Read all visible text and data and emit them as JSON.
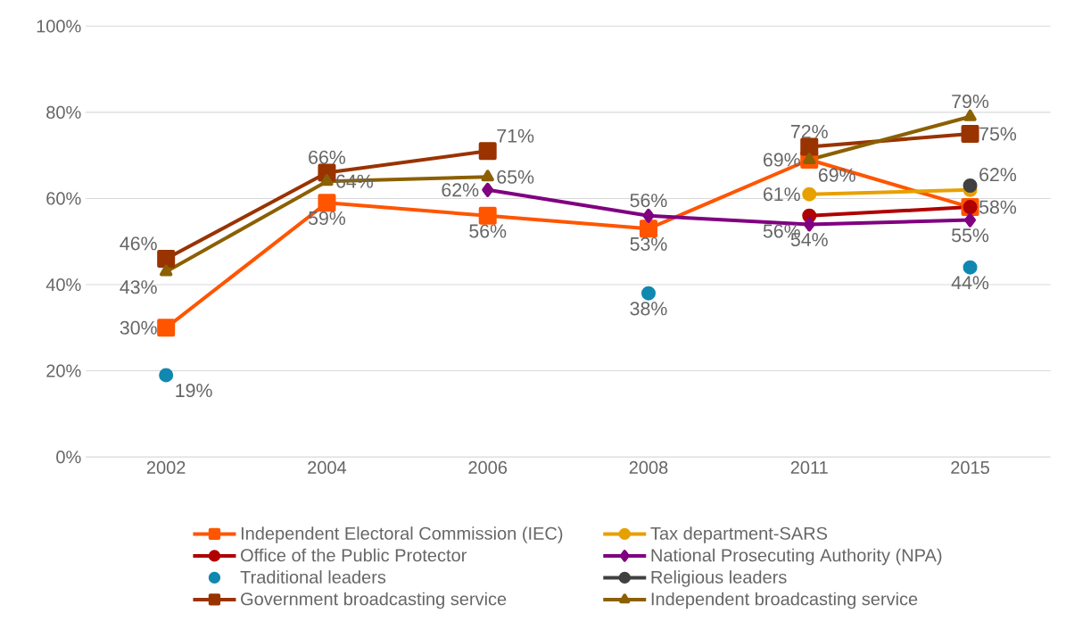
{
  "chart_data": {
    "type": "line",
    "categories": [
      "2002",
      "2004",
      "2006",
      "2008",
      "2011",
      "2015"
    ],
    "ylim": [
      0,
      100
    ],
    "yticks": [
      {
        "value": 0,
        "label": "0%"
      },
      {
        "value": 20,
        "label": "20%"
      },
      {
        "value": 40,
        "label": "40%"
      },
      {
        "value": 60,
        "label": "60%"
      },
      {
        "value": 80,
        "label": "80%"
      },
      {
        "value": 100,
        "label": "100%"
      }
    ],
    "grid": "y",
    "legend": "bottom",
    "line_style": "solid",
    "series": [
      {
        "name": "Independent  Electoral Commission (IEC)",
        "color": "#ff5500",
        "marker": "square",
        "values": [
          30,
          59,
          56,
          53,
          69,
          58
        ],
        "value_labels": [
          "30%",
          "59%",
          "56%",
          "53%",
          "69%",
          null
        ]
      },
      {
        "name": "Tax department-SARS",
        "color": "#e8a000",
        "marker": "circle",
        "values": [
          null,
          null,
          null,
          null,
          61,
          62
        ],
        "value_labels": [
          null,
          null,
          null,
          null,
          "61%",
          "62%"
        ]
      },
      {
        "name": "Office of the Public Protector",
        "color": "#b00000",
        "marker": "circle",
        "values": [
          null,
          null,
          null,
          null,
          56,
          58
        ],
        "value_labels": [
          null,
          null,
          null,
          null,
          "56%",
          "58%"
        ]
      },
      {
        "name": "National Prosecuting Authority (NPA)",
        "color": "#800080",
        "marker": "diamond",
        "values": [
          null,
          null,
          62,
          56,
          54,
          55
        ],
        "value_labels": [
          null,
          null,
          "62%",
          "56%",
          "54%",
          "55%"
        ]
      },
      {
        "name": "Traditional leaders",
        "type": "scatter",
        "color": "#1088b0",
        "marker": "circle",
        "values": [
          19,
          null,
          null,
          38,
          null,
          44
        ],
        "value_labels": [
          "19%",
          null,
          null,
          "38%",
          null,
          "44%"
        ]
      },
      {
        "name": "Religious leaders",
        "color": "#404040",
        "marker": "circle",
        "values": [
          null,
          null,
          null,
          null,
          null,
          63
        ],
        "value_labels": [
          null,
          null,
          null,
          null,
          null,
          null
        ]
      },
      {
        "name": "Government broadcasting service",
        "color": "#993300",
        "marker": "square",
        "values": [
          46,
          66,
          71,
          null,
          72,
          75
        ],
        "value_labels": [
          "46%",
          "66%",
          "71%",
          null,
          "72%",
          "75%"
        ]
      },
      {
        "name": "Independent broadcasting service",
        "color": "#8b6000",
        "marker": "triangle",
        "values": [
          43,
          64,
          65,
          null,
          69,
          79
        ],
        "value_labels": [
          "43%",
          "64%",
          "65%",
          null,
          "69%",
          "79%"
        ]
      }
    ]
  }
}
